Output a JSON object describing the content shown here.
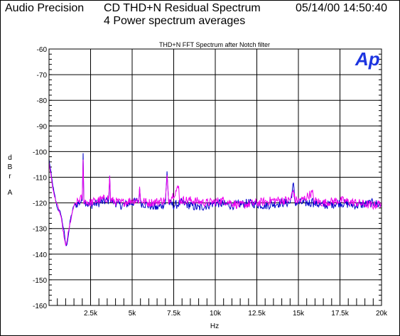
{
  "header": {
    "vendor": "Audio Precision",
    "title": "CD THD+N Residual Spectrum",
    "subtitle": "4 Power spectrum averages",
    "timestamp": "05/14/00 14:50:40"
  },
  "logo": {
    "text": "Ap",
    "color": "#1d35e0"
  },
  "chart_data": {
    "type": "line",
    "title": "THD+N FFT Spectrum after Notch filter",
    "xlabel": "Hz",
    "ylabel": "dBr A",
    "xlim": [
      0,
      20000
    ],
    "ylim": [
      -160,
      -60
    ],
    "x_ticks": [
      {
        "value": 2500,
        "label": "2.5k"
      },
      {
        "value": 5000,
        "label": "5k"
      },
      {
        "value": 7500,
        "label": "7.5k"
      },
      {
        "value": 10000,
        "label": "10k"
      },
      {
        "value": 12500,
        "label": "12.5k"
      },
      {
        "value": 15000,
        "label": "15k"
      },
      {
        "value": 17500,
        "label": "17.5k"
      },
      {
        "value": 20000,
        "label": "20k"
      }
    ],
    "y_ticks": [
      {
        "value": -60,
        "label": "-60"
      },
      {
        "value": -70,
        "label": "-70"
      },
      {
        "value": -80,
        "label": "-80"
      },
      {
        "value": -90,
        "label": "-90"
      },
      {
        "value": -100,
        "label": "-100"
      },
      {
        "value": -110,
        "label": "-110"
      },
      {
        "value": -120,
        "label": "-120"
      },
      {
        "value": -130,
        "label": "-130"
      },
      {
        "value": -140,
        "label": "-140"
      },
      {
        "value": -150,
        "label": "-150"
      },
      {
        "value": -160,
        "label": "-160"
      }
    ],
    "grid": true,
    "series": [
      {
        "color": "#0000cc",
        "baseline": -120.5,
        "points": [
          [
            0,
            -103
          ],
          [
            150,
            -110
          ],
          [
            300,
            -116
          ],
          [
            500,
            -122
          ],
          [
            700,
            -124
          ],
          [
            900,
            -131
          ],
          [
            1000,
            -136
          ],
          [
            1050,
            -137
          ],
          [
            1150,
            -133
          ],
          [
            1300,
            -126
          ],
          [
            1500,
            -121
          ],
          [
            1800,
            -120
          ],
          [
            2000,
            -119
          ],
          [
            2050,
            -99
          ],
          [
            2100,
            -119
          ],
          [
            2400,
            -121
          ],
          [
            3000,
            -120
          ],
          [
            3600,
            -119
          ],
          [
            3650,
            -108
          ],
          [
            3700,
            -119
          ],
          [
            4300,
            -121
          ],
          [
            5000,
            -120
          ],
          [
            5400,
            -119
          ],
          [
            5450,
            -113
          ],
          [
            5500,
            -120
          ],
          [
            6000,
            -121
          ],
          [
            6500,
            -122
          ],
          [
            7000,
            -120
          ],
          [
            7100,
            -108
          ],
          [
            7200,
            -120
          ],
          [
            7500,
            -121
          ],
          [
            8000,
            -120
          ],
          [
            9000,
            -122
          ],
          [
            10000,
            -120
          ],
          [
            11000,
            -121
          ],
          [
            12000,
            -120
          ],
          [
            13000,
            -121
          ],
          [
            14000,
            -120
          ],
          [
            14500,
            -120
          ],
          [
            14700,
            -113
          ],
          [
            14800,
            -120
          ],
          [
            15200,
            -120
          ],
          [
            15800,
            -120
          ],
          [
            15850,
            -117
          ],
          [
            15900,
            -120
          ],
          [
            16500,
            -121
          ],
          [
            17500,
            -120
          ],
          [
            18500,
            -121
          ],
          [
            19500,
            -120
          ],
          [
            20000,
            -121
          ]
        ]
      },
      {
        "color": "#ee00ee",
        "baseline": -120.0,
        "points": [
          [
            0,
            -104
          ],
          [
            150,
            -111
          ],
          [
            300,
            -117
          ],
          [
            500,
            -121
          ],
          [
            700,
            -125
          ],
          [
            900,
            -133
          ],
          [
            1000,
            -137
          ],
          [
            1050,
            -136
          ],
          [
            1150,
            -132
          ],
          [
            1300,
            -127
          ],
          [
            1500,
            -121
          ],
          [
            1800,
            -119
          ],
          [
            2000,
            -118
          ],
          [
            2050,
            -104
          ],
          [
            2100,
            -119
          ],
          [
            2400,
            -120
          ],
          [
            3000,
            -119
          ],
          [
            3600,
            -118
          ],
          [
            3650,
            -109
          ],
          [
            3700,
            -119
          ],
          [
            4300,
            -120
          ],
          [
            5000,
            -119
          ],
          [
            5400,
            -119
          ],
          [
            5450,
            -114
          ],
          [
            5500,
            -119
          ],
          [
            6000,
            -120
          ],
          [
            7000,
            -119
          ],
          [
            7100,
            -110
          ],
          [
            7200,
            -119
          ],
          [
            7800,
            -114
          ],
          [
            7850,
            -119
          ],
          [
            8500,
            -119
          ],
          [
            9500,
            -120
          ],
          [
            10500,
            -119
          ],
          [
            11500,
            -121
          ],
          [
            12500,
            -120
          ],
          [
            13500,
            -119
          ],
          [
            14500,
            -119
          ],
          [
            14700,
            -115
          ],
          [
            14800,
            -119
          ],
          [
            15200,
            -119
          ],
          [
            15850,
            -116
          ],
          [
            15900,
            -119
          ],
          [
            16500,
            -120
          ],
          [
            17500,
            -119
          ],
          [
            18500,
            -120
          ],
          [
            19500,
            -121
          ],
          [
            20000,
            -120
          ]
        ]
      }
    ]
  }
}
